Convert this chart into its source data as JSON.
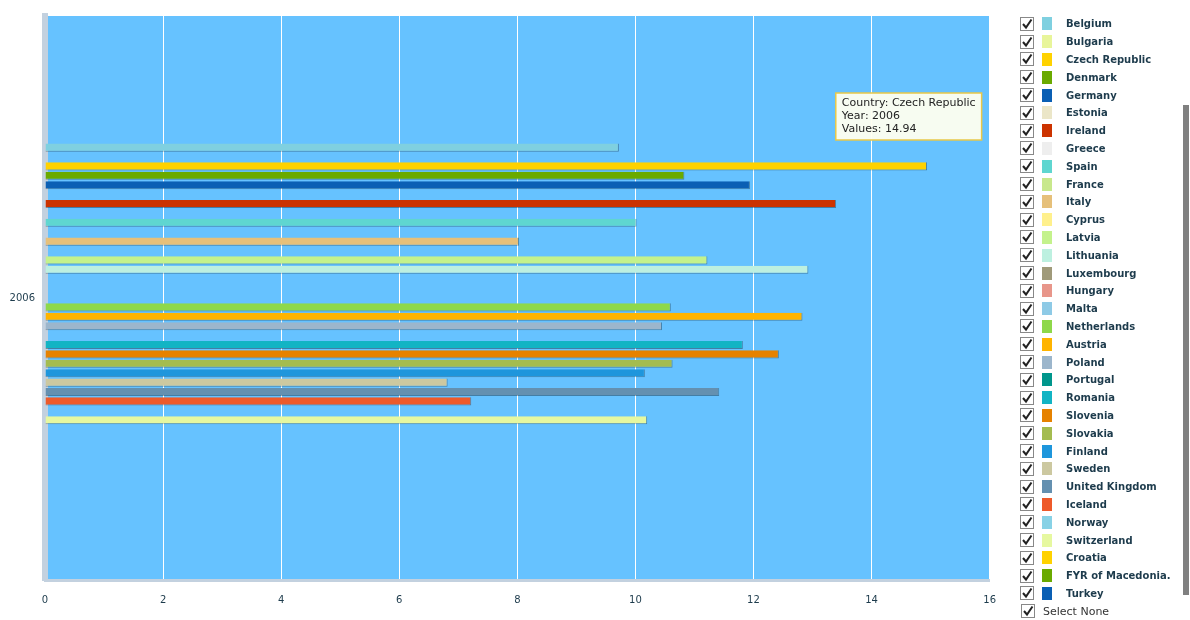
{
  "chart_data": {
    "type": "bar",
    "orientation": "horizontal",
    "categories": [
      "2006"
    ],
    "xlim": [
      0,
      16
    ],
    "xticks": [
      0,
      2,
      4,
      6,
      8,
      10,
      12,
      14,
      16
    ],
    "grid": "x",
    "legend": "right",
    "annotations": [
      "Country: Czech Republic\nYear: 2006\nValues: 14.94",
      "Select None"
    ],
    "series": [
      {
        "name": "Belgium",
        "color": "#7fd0e0",
        "values": [
          9.72
        ]
      },
      {
        "name": "Bulgaria",
        "color": "#e8f59a",
        "values": [
          null
        ]
      },
      {
        "name": "Czech Republic",
        "color": "#ffd200",
        "values": [
          14.94
        ]
      },
      {
        "name": "Denmark",
        "color": "#6aaa00",
        "values": [
          10.83
        ]
      },
      {
        "name": "Germany",
        "color": "#0a5fb4",
        "values": [
          11.94
        ]
      },
      {
        "name": "Estonia",
        "color": "#ebe6c8",
        "values": [
          null
        ]
      },
      {
        "name": "Ireland",
        "color": "#cc3300",
        "values": [
          13.4
        ]
      },
      {
        "name": "Greece",
        "color": "#eeeeee",
        "values": [
          null
        ]
      },
      {
        "name": "Spain",
        "color": "#5fd6d0",
        "values": [
          10.02
        ]
      },
      {
        "name": "France",
        "color": "#c8e88c",
        "values": [
          null
        ]
      },
      {
        "name": "Italy",
        "color": "#e6c07a",
        "values": [
          8.03
        ]
      },
      {
        "name": "Cyprus",
        "color": "#fff08c",
        "values": [
          null
        ]
      },
      {
        "name": "Latvia",
        "color": "#c4f28c",
        "values": [
          11.22
        ]
      },
      {
        "name": "Lithuania",
        "color": "#bdf0e0",
        "values": [
          12.93
        ]
      },
      {
        "name": "Luxembourg",
        "color": "#a09a7a",
        "values": [
          null
        ]
      },
      {
        "name": "Hungary",
        "color": "#e8968a",
        "values": [
          null
        ]
      },
      {
        "name": "Malta",
        "color": "#8ecae6",
        "values": [
          null
        ]
      },
      {
        "name": "Netherlands",
        "color": "#8ed84a",
        "values": [
          10.6
        ]
      },
      {
        "name": "Austria",
        "color": "#ffb400",
        "values": [
          12.83
        ]
      },
      {
        "name": "Poland",
        "color": "#9cb6cc",
        "values": [
          10.45
        ]
      },
      {
        "name": "Portugal",
        "color": "#00968c",
        "values": [
          null
        ]
      },
      {
        "name": "Romania",
        "color": "#12b4c4",
        "values": [
          11.82
        ]
      },
      {
        "name": "Slovenia",
        "color": "#e68200",
        "values": [
          12.43
        ]
      },
      {
        "name": "Slovakia",
        "color": "#a4bc50",
        "values": [
          10.63
        ]
      },
      {
        "name": "Finland",
        "color": "#1e96dc",
        "values": [
          10.16
        ]
      },
      {
        "name": "Sweden",
        "color": "#ccc8a0",
        "values": [
          6.82
        ]
      },
      {
        "name": "United Kingdom",
        "color": "#6490b0",
        "values": [
          11.42
        ]
      },
      {
        "name": "Iceland",
        "color": "#ee5a2a",
        "values": [
          7.22
        ]
      },
      {
        "name": "Norway",
        "color": "#88d2e6",
        "values": [
          null
        ]
      },
      {
        "name": "Switzerland",
        "color": "#e6f8a0",
        "values": [
          10.2
        ]
      },
      {
        "name": "Croatia",
        "color": "#ffd200",
        "values": [
          null
        ]
      },
      {
        "name": "FYR of Macedonia.",
        "color": "#6aaa00",
        "values": [
          null
        ]
      },
      {
        "name": "Turkey",
        "color": "#0a5fb4",
        "values": [
          null
        ]
      }
    ]
  }
}
